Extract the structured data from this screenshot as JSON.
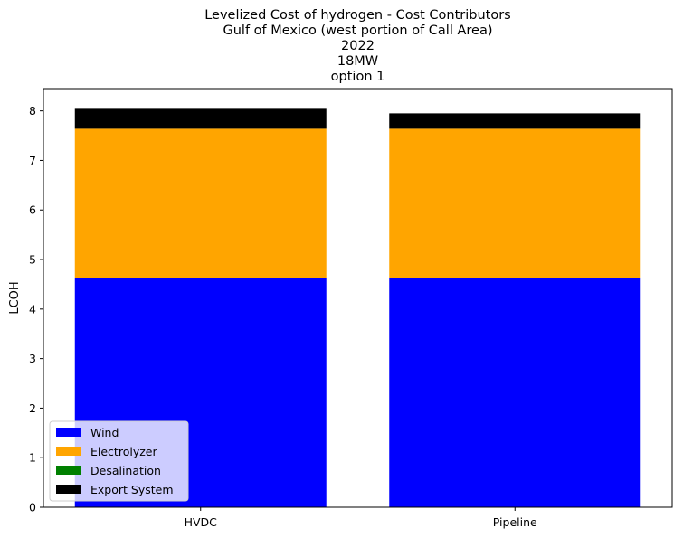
{
  "chart_data": {
    "type": "bar",
    "stacked": true,
    "title_lines": [
      "Levelized Cost of hydrogen - Cost Contributors",
      "Gulf of Mexico (west portion of Call Area)",
      "2022",
      "18MW",
      "option 1"
    ],
    "xlabel": "",
    "ylabel": "LCOH",
    "categories": [
      "HVDC",
      "Pipeline"
    ],
    "ylim": [
      0,
      8.45
    ],
    "yticks": [
      "0",
      "1",
      "2",
      "3",
      "4",
      "5",
      "6",
      "7",
      "8"
    ],
    "series": [
      {
        "name": "Wind",
        "color": "#0000ff",
        "values": [
          4.63,
          4.63
        ]
      },
      {
        "name": "Electrolyzer",
        "color": "#ffa500",
        "values": [
          3.01,
          3.01
        ]
      },
      {
        "name": "Desalination",
        "color": "#008000",
        "values": [
          0.0,
          0.0
        ]
      },
      {
        "name": "Export System",
        "color": "#000000",
        "values": [
          0.42,
          0.31
        ]
      }
    ],
    "legend_location": "lower-left",
    "grid": false
  }
}
